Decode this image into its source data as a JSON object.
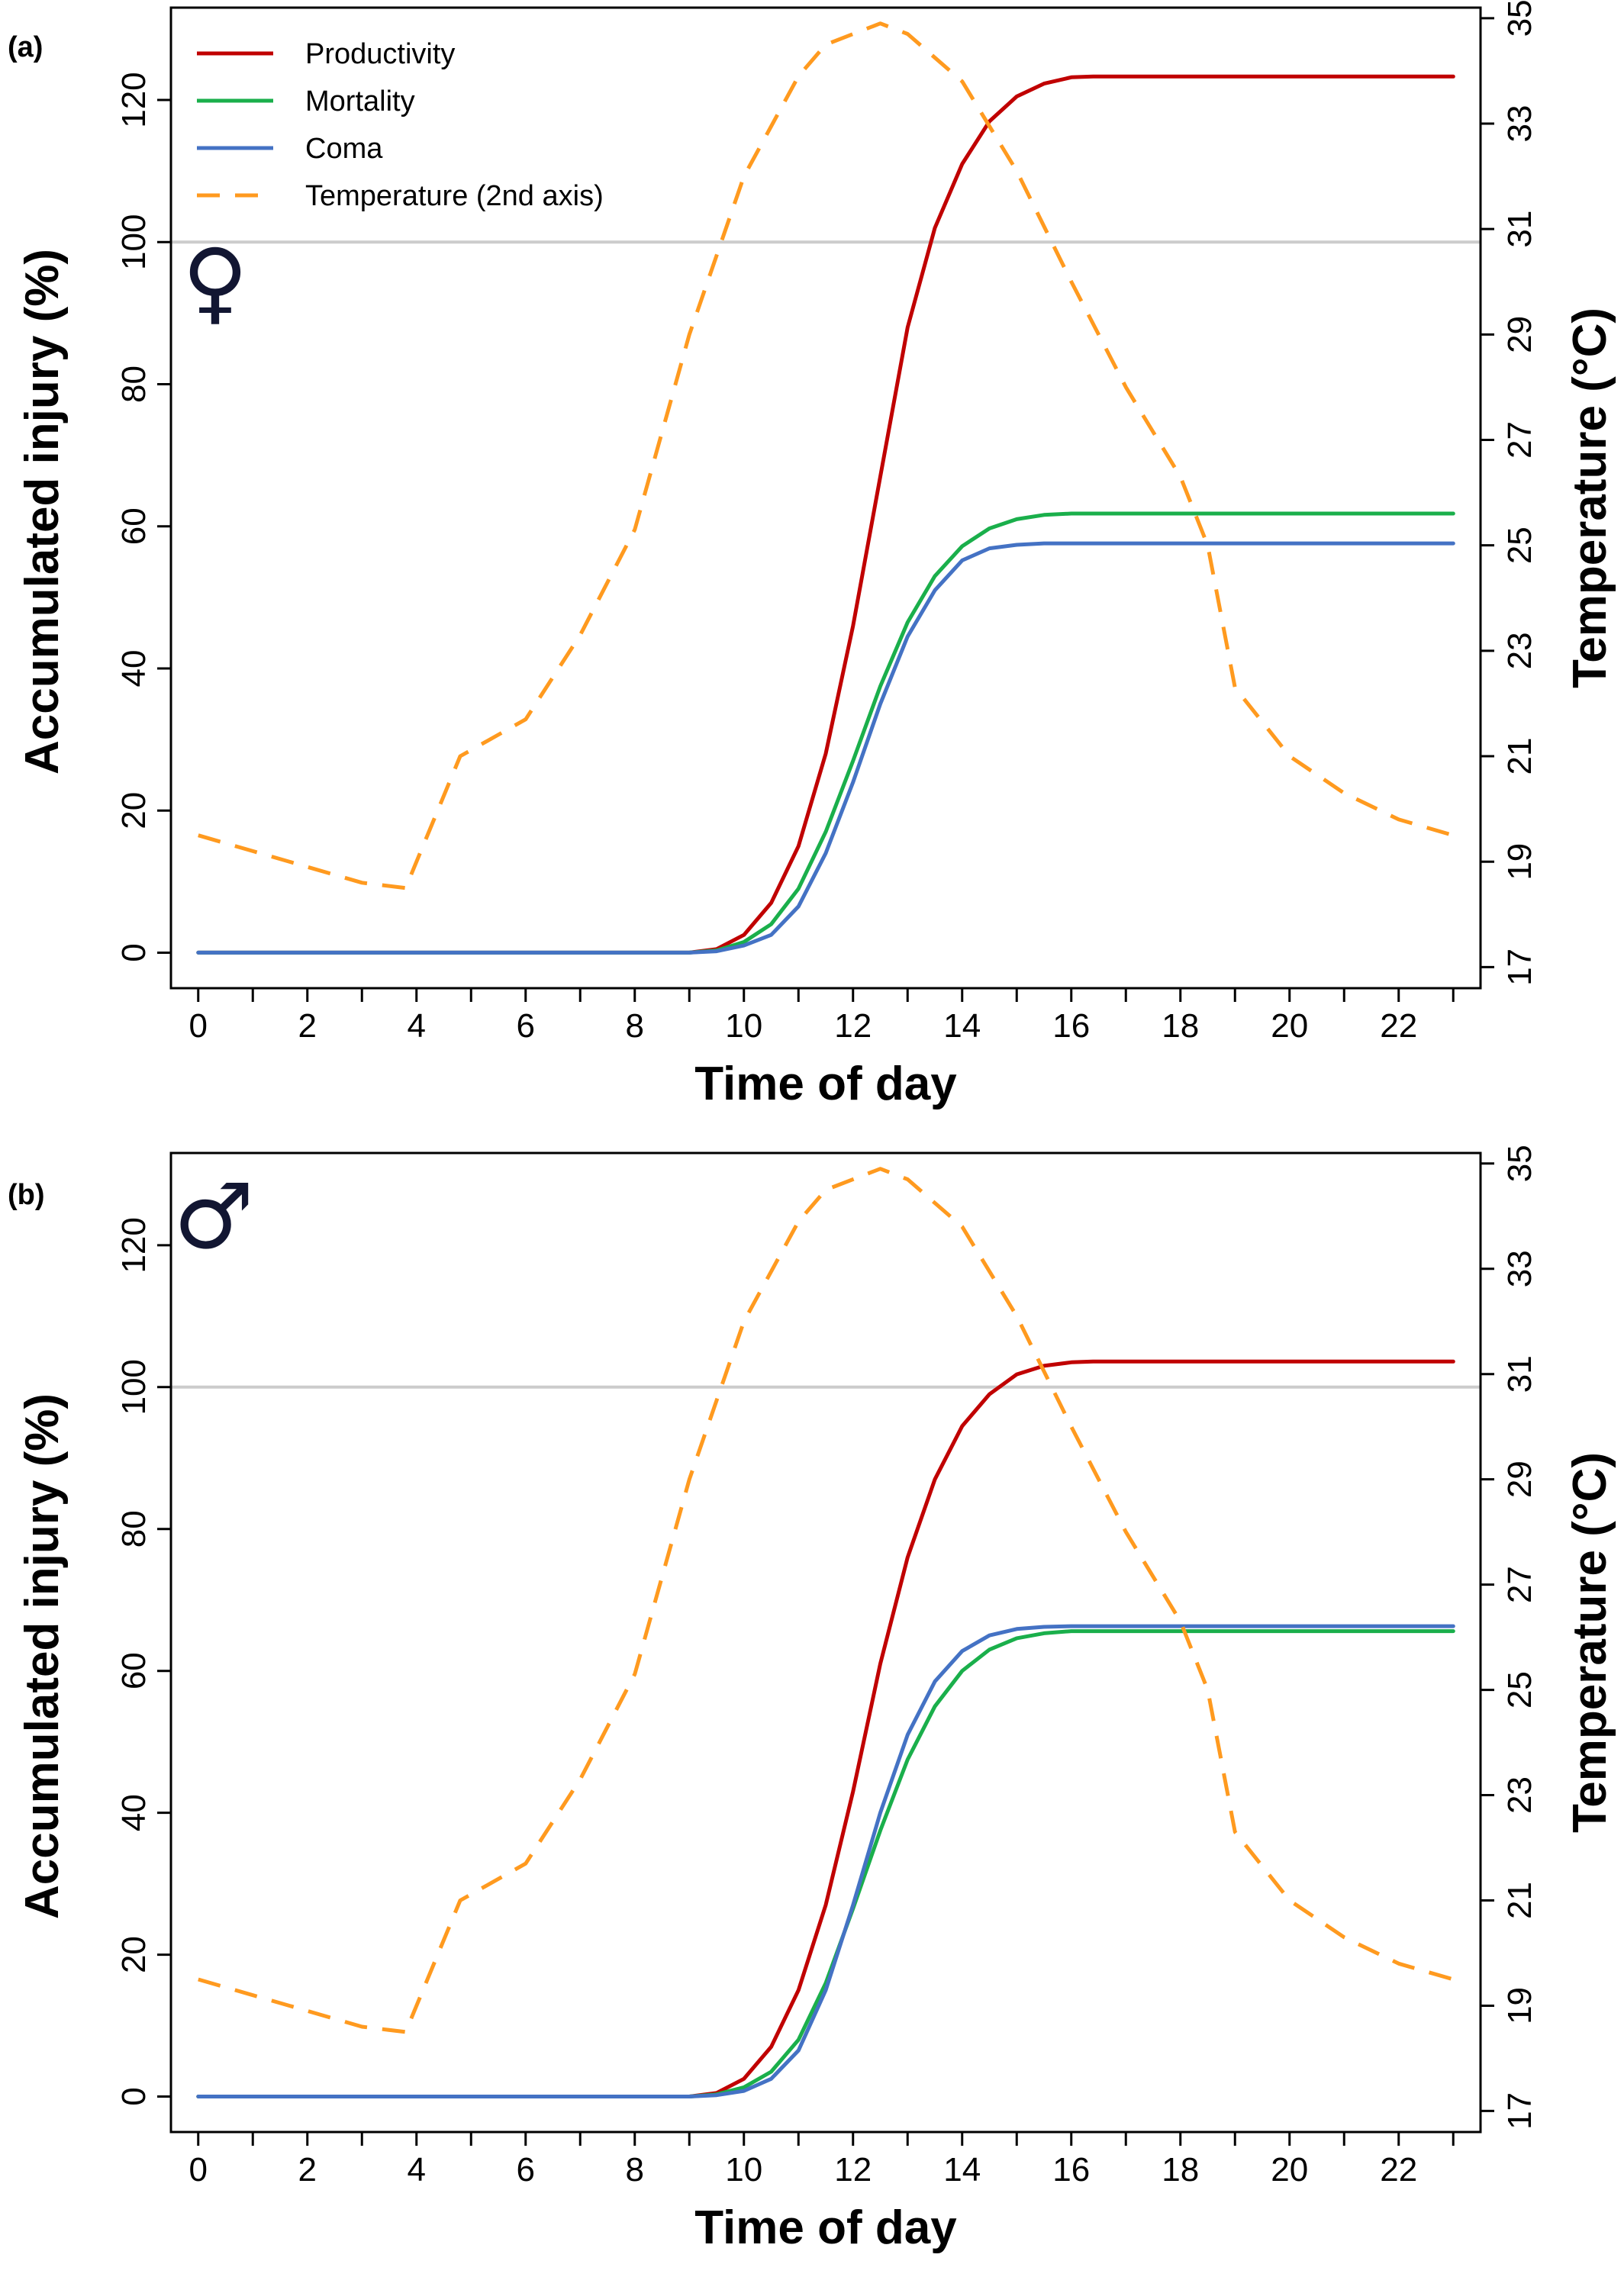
{
  "chart_data": [
    {
      "type": "line",
      "panel_label": "(a)",
      "symbol": "♀",
      "xlabel": "Time of day",
      "ylabel": "Accumulated injury (%)",
      "y2label": "Temperature (°C)",
      "xlim": [
        -0.5,
        23.5
      ],
      "ylim": [
        -5,
        133
      ],
      "y2lim": [
        16.6,
        35.2
      ],
      "xticks": [
        0,
        1,
        2,
        3,
        4,
        5,
        6,
        7,
        8,
        9,
        10,
        11,
        12,
        13,
        14,
        15,
        16,
        17,
        18,
        19,
        20,
        21,
        22,
        23
      ],
      "xtick_labels": [
        "0",
        "",
        "2",
        "",
        "4",
        "",
        "6",
        "",
        "8",
        "",
        "10",
        "",
        "12",
        "",
        "14",
        "",
        "16",
        "",
        "18",
        "",
        "20",
        "",
        "22",
        ""
      ],
      "yticks": [
        0,
        20,
        40,
        60,
        80,
        100,
        120
      ],
      "y2ticks": [
        17,
        19,
        21,
        23,
        25,
        27,
        29,
        31,
        33,
        35
      ],
      "reference_line": {
        "y": 100,
        "color": "#cccccc"
      },
      "legend": {
        "placement": "top-left",
        "items": [
          {
            "label": "Productivity",
            "color": "#c00000",
            "style": "solid"
          },
          {
            "label": "Mortality",
            "color": "#1aaf4b",
            "style": "solid"
          },
          {
            "label": "Coma",
            "color": "#4472c4",
            "style": "solid"
          },
          {
            "label": "Temperature (2nd axis)",
            "color": "#ff9a1f",
            "style": "dashed"
          }
        ]
      },
      "series": [
        {
          "name": "Productivity",
          "axis": "left",
          "color": "#c00000",
          "style": "solid",
          "x": [
            0,
            9,
            9.5,
            10,
            10.5,
            11,
            11.5,
            12,
            12.5,
            13,
            13.5,
            14,
            14.5,
            15,
            15.5,
            16,
            16.4,
            23
          ],
          "y": [
            0,
            0,
            0.5,
            2.5,
            7,
            15,
            28,
            46,
            67,
            88,
            102,
            111,
            117,
            120.5,
            122.3,
            123.2,
            123.3,
            123.3
          ]
        },
        {
          "name": "Mortality",
          "axis": "left",
          "color": "#1aaf4b",
          "style": "solid",
          "x": [
            0,
            9,
            9.5,
            10,
            10.5,
            11,
            11.5,
            12,
            12.5,
            13,
            13.5,
            14,
            14.5,
            15,
            15.5,
            16,
            16.4,
            23
          ],
          "y": [
            0,
            0,
            0.3,
            1.5,
            4,
            9,
            17,
            27,
            37.5,
            46.5,
            53,
            57.2,
            59.7,
            61,
            61.6,
            61.8,
            61.8,
            61.8
          ]
        },
        {
          "name": "Coma",
          "axis": "left",
          "color": "#4472c4",
          "style": "solid",
          "x": [
            0,
            9,
            9.5,
            10,
            10.5,
            11,
            11.5,
            12,
            12.5,
            13,
            13.5,
            14,
            14.5,
            15,
            15.5,
            16,
            16.4,
            23
          ],
          "y": [
            0,
            0,
            0.2,
            1,
            2.5,
            6.5,
            14,
            24,
            35,
            44.5,
            51,
            55.2,
            56.9,
            57.4,
            57.6,
            57.6,
            57.6,
            57.6
          ]
        },
        {
          "name": "Temperature (2nd axis)",
          "axis": "right",
          "color": "#ff9a1f",
          "style": "dashed",
          "x": [
            0,
            1,
            2,
            3,
            3.8,
            4.8,
            6,
            7,
            8,
            9,
            10,
            11,
            11.5,
            12.5,
            13,
            14,
            15,
            16,
            17,
            18,
            18.5,
            19,
            20,
            21,
            22,
            23
          ],
          "y": [
            19.5,
            19.2,
            18.9,
            18.6,
            18.5,
            21.0,
            21.7,
            23.3,
            25.3,
            29.0,
            32.0,
            33.9,
            34.5,
            34.9,
            34.7,
            33.8,
            32.1,
            30.0,
            28.0,
            26.3,
            25.0,
            22.3,
            21.0,
            20.3,
            19.8,
            19.5
          ]
        }
      ]
    },
    {
      "type": "line",
      "panel_label": "(b)",
      "symbol": "♂",
      "xlabel": "Time of day",
      "ylabel": "Accumulated injury (%)",
      "y2label": "Temperature (°C)",
      "xlim": [
        -0.5,
        23.5
      ],
      "ylim": [
        -5,
        133
      ],
      "y2lim": [
        16.6,
        35.2
      ],
      "xticks": [
        0,
        1,
        2,
        3,
        4,
        5,
        6,
        7,
        8,
        9,
        10,
        11,
        12,
        13,
        14,
        15,
        16,
        17,
        18,
        19,
        20,
        21,
        22,
        23
      ],
      "xtick_labels": [
        "0",
        "",
        "2",
        "",
        "4",
        "",
        "6",
        "",
        "8",
        "",
        "10",
        "",
        "12",
        "",
        "14",
        "",
        "16",
        "",
        "18",
        "",
        "20",
        "",
        "22",
        ""
      ],
      "yticks": [
        0,
        20,
        40,
        60,
        80,
        100,
        120
      ],
      "y2ticks": [
        17,
        19,
        21,
        23,
        25,
        27,
        29,
        31,
        33,
        35
      ],
      "reference_line": {
        "y": 100,
        "color": "#cccccc"
      },
      "series": [
        {
          "name": "Productivity",
          "axis": "left",
          "color": "#c00000",
          "style": "solid",
          "x": [
            0,
            9,
            9.5,
            10,
            10.5,
            11,
            11.5,
            12,
            12.5,
            13,
            13.5,
            14,
            14.5,
            15,
            15.5,
            16,
            16.4,
            23
          ],
          "y": [
            0,
            0,
            0.5,
            2.5,
            7,
            15,
            27,
            43,
            61,
            76,
            87,
            94.5,
            99,
            101.8,
            103,
            103.5,
            103.6,
            103.6
          ]
        },
        {
          "name": "Mortality",
          "axis": "left",
          "color": "#1aaf4b",
          "style": "solid",
          "x": [
            0,
            9,
            9.5,
            10,
            10.5,
            11,
            11.5,
            12,
            12.5,
            13,
            13.5,
            14,
            14.5,
            15,
            15.5,
            16,
            16.4,
            23
          ],
          "y": [
            0,
            0,
            0.3,
            1.3,
            3.5,
            8,
            16,
            26.5,
            37.5,
            47.5,
            55,
            60,
            63,
            64.6,
            65.3,
            65.6,
            65.6,
            65.6
          ]
        },
        {
          "name": "Coma",
          "axis": "left",
          "color": "#4472c4",
          "style": "solid",
          "x": [
            0,
            9,
            9.5,
            10,
            10.5,
            11,
            11.5,
            12,
            12.5,
            13,
            13.5,
            14,
            14.5,
            15,
            15.5,
            16,
            16.4,
            23
          ],
          "y": [
            0,
            0,
            0.2,
            0.8,
            2.5,
            6.5,
            15,
            27,
            40,
            51,
            58.5,
            62.8,
            65,
            65.9,
            66.2,
            66.3,
            66.3,
            66.3
          ]
        },
        {
          "name": "Temperature (2nd axis)",
          "axis": "right",
          "color": "#ff9a1f",
          "style": "dashed",
          "x": [
            0,
            1,
            2,
            3,
            3.8,
            4.8,
            6,
            7,
            8,
            9,
            10,
            11,
            11.5,
            12.5,
            13,
            14,
            15,
            16,
            17,
            18,
            18.5,
            19,
            20,
            21,
            22,
            23
          ],
          "y": [
            19.5,
            19.2,
            18.9,
            18.6,
            18.5,
            21.0,
            21.7,
            23.3,
            25.3,
            29.0,
            32.0,
            33.9,
            34.5,
            34.9,
            34.7,
            33.8,
            32.1,
            30.0,
            28.0,
            26.3,
            25.0,
            22.3,
            21.0,
            20.3,
            19.8,
            19.5
          ]
        }
      ]
    }
  ]
}
